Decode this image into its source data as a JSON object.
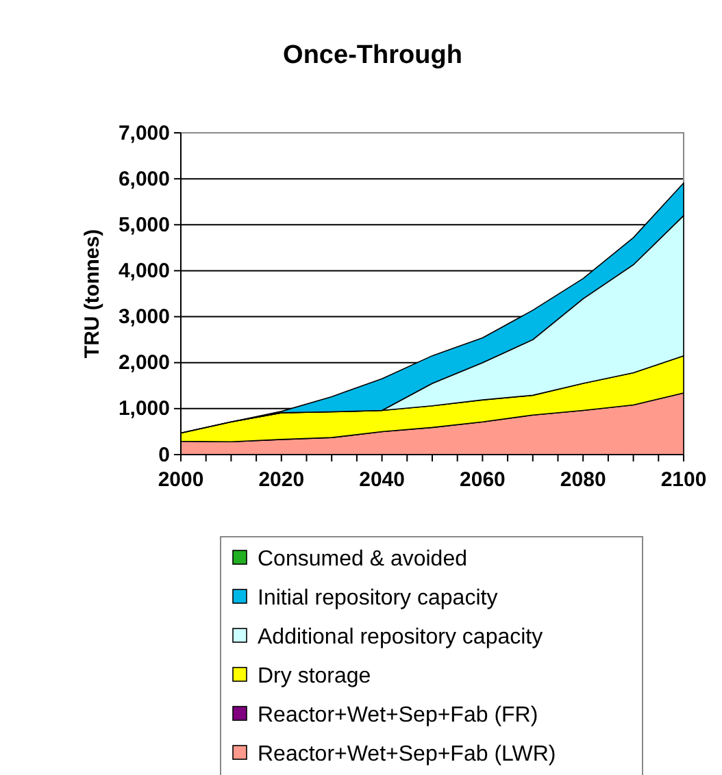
{
  "chart_data": {
    "type": "area",
    "stacked": true,
    "title": "Once-Through",
    "ylabel": "TRU (tonnes)",
    "x": [
      2000,
      2010,
      2020,
      2030,
      2040,
      2050,
      2060,
      2070,
      2080,
      2090,
      2100
    ],
    "xlim": [
      2000,
      2100
    ],
    "xticks": [
      2000,
      {
        "value": 2005,
        "label": null
      },
      {
        "value": 2010,
        "label": null
      },
      {
        "value": 2015,
        "label": null
      },
      2020,
      {
        "value": 2025,
        "label": null
      },
      {
        "value": 2030,
        "label": null
      },
      {
        "value": 2035,
        "label": null
      },
      2040,
      {
        "value": 2045,
        "label": null
      },
      {
        "value": 2050,
        "label": null
      },
      {
        "value": 2055,
        "label": null
      },
      2060,
      {
        "value": 2065,
        "label": null
      },
      {
        "value": 2070,
        "label": null
      },
      {
        "value": 2075,
        "label": null
      },
      2080,
      {
        "value": 2085,
        "label": null
      },
      {
        "value": 2090,
        "label": null
      },
      {
        "value": 2095,
        "label": null
      },
      2100
    ],
    "ylim": [
      0,
      7000
    ],
    "yticks": [
      {
        "value": 0,
        "label": "0"
      },
      {
        "value": 1000,
        "label": "1,000"
      },
      {
        "value": 2000,
        "label": "2,000"
      },
      {
        "value": 3000,
        "label": "3,000"
      },
      {
        "value": 4000,
        "label": "4,000"
      },
      {
        "value": 5000,
        "label": "5,000"
      },
      {
        "value": 6000,
        "label": "6,000"
      },
      {
        "value": 7000,
        "label": "7,000"
      }
    ],
    "grid": "y",
    "legend": "bottom",
    "series": [
      {
        "name": "Reactor+Wet+Sep+Fab (LWR)",
        "color": "#ff9a8c",
        "values": [
          290,
          280,
          330,
          370,
          500,
          590,
          710,
          860,
          960,
          1080,
          1340
        ]
      },
      {
        "name": "Reactor+Wet+Sep+Fab (FR)",
        "color": "#800080",
        "values": [
          null,
          null,
          null,
          null,
          null,
          null,
          null,
          null,
          null,
          null,
          null
        ]
      },
      {
        "name": "Dry storage",
        "color": "#ffff00",
        "values": [
          180,
          430,
          580,
          560,
          460,
          470,
          480,
          430,
          590,
          700,
          810
        ]
      },
      {
        "name": "Additional repository capacity",
        "color": "#ccffff",
        "values": [
          0,
          0,
          0,
          0,
          0,
          490,
          810,
          1210,
          1840,
          2350,
          3050
        ]
      },
      {
        "name": "Initial repository capacity",
        "color": "#00b8e8",
        "values": [
          0,
          0,
          30,
          330,
          690,
          600,
          540,
          640,
          440,
          590,
          710
        ]
      },
      {
        "name": "Consumed & avoided",
        "color": "#22b022",
        "values": [
          null,
          null,
          null,
          null,
          null,
          null,
          null,
          null,
          null,
          null,
          null
        ]
      }
    ]
  }
}
